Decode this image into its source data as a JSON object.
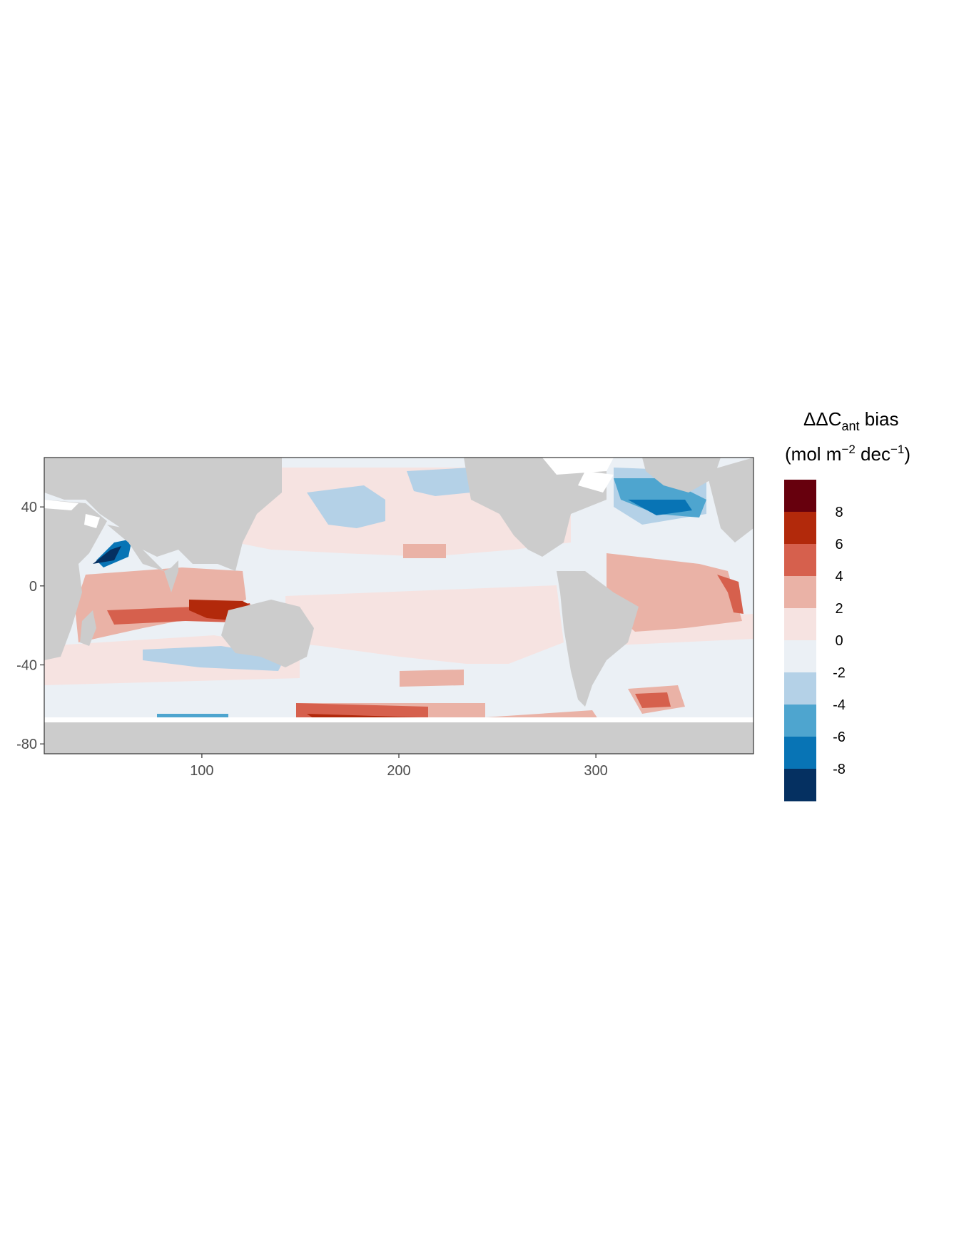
{
  "chart_data": {
    "type": "heatmap",
    "xlim": [
      20,
      380
    ],
    "ylim": [
      -85,
      65
    ],
    "x_ticks": [
      "100",
      "200",
      "300"
    ],
    "y_ticks": [
      "40",
      "0",
      "-40",
      "-80"
    ],
    "legend": {
      "title_main": "ΔΔC",
      "title_sub": "ant",
      "title_rest": " bias",
      "unit_open": "(mol m",
      "unit_exp1": "−2",
      "unit_mid": " dec",
      "unit_exp2": "−1",
      "unit_close": ")",
      "labels": [
        "8",
        "6",
        "4",
        "2",
        "0",
        "-2",
        "-4",
        "-6",
        "-8"
      ],
      "colors": [
        "#67000d",
        "#b2290b",
        "#d6604d",
        "#eab2a6",
        "#f6e3e1",
        "#ebf0f5",
        "#b4d1e7",
        "#4ea5cf",
        "#0874b5",
        "#053061"
      ]
    },
    "colors": {
      "land": "#cccccc",
      "no_data": "#ffffff",
      "panel_border": "#333333"
    }
  }
}
